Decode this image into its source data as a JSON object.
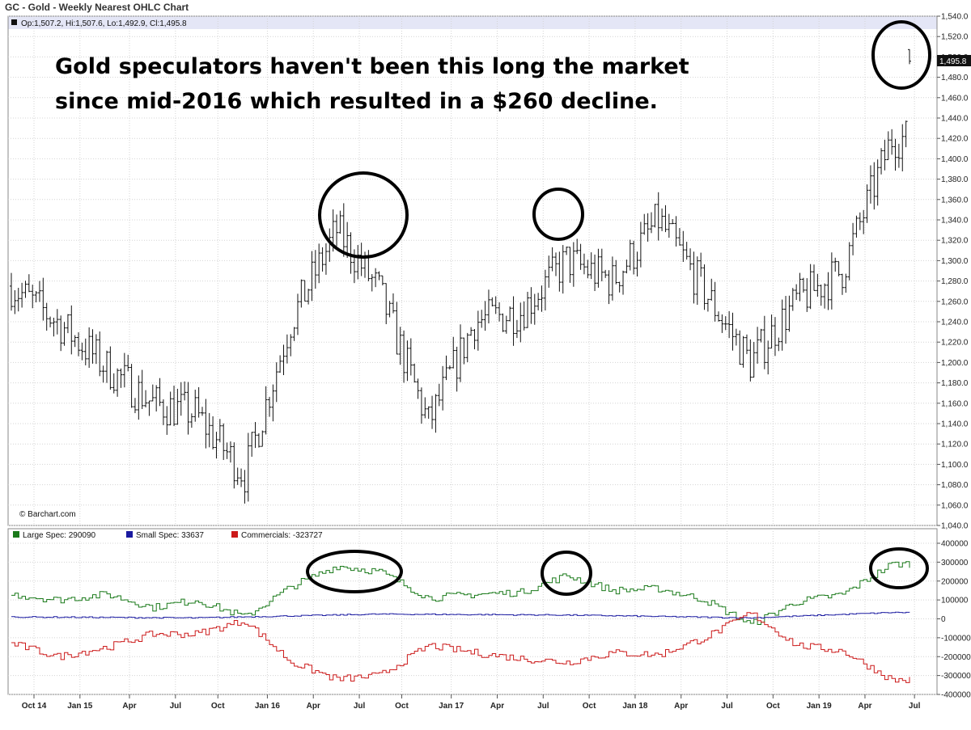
{
  "header": {
    "title": "GC - Gold - Weekly Nearest OHLC Chart"
  },
  "ohlc_info": "Op:1,507.2, Hi:1,507.6, Lo:1,492.9, Cl:1,495.8",
  "watermark": "© Barchart.com",
  "annotation": {
    "line1": "Gold speculators haven't been this long the market",
    "line2": "since mid-2016 which resulted in a $260 decline."
  },
  "last_price_label": "1,495.8",
  "colors": {
    "large_spec": "#1a7a1a",
    "small_spec": "#1a1aa0",
    "commercials": "#cc1a1a",
    "ohlc": "#111111",
    "info_band": "#e4e6f6"
  },
  "chart_data": [
    {
      "type": "ohlc",
      "title": "GC - Gold - Weekly Nearest OHLC Chart",
      "ylim": [
        1040,
        1540
      ],
      "yticks": [
        "1,040.0",
        "1,060.0",
        "1,080.0",
        "1,100.0",
        "1,120.0",
        "1,140.0",
        "1,160.0",
        "1,180.0",
        "1,200.0",
        "1,220.0",
        "1,240.0",
        "1,260.0",
        "1,280.0",
        "1,300.0",
        "1,320.0",
        "1,340.0",
        "1,360.0",
        "1,380.0",
        "1,400.0",
        "1,420.0",
        "1,440.0",
        "1,460.0",
        "1,480.0",
        "1,500.0",
        "1,520.0",
        "1,540.0"
      ],
      "x_labels": [
        "Oct 14",
        "Jan 15",
        "Apr",
        "Jul",
        "Oct",
        "Jan 16",
        "Apr",
        "Jul",
        "Oct",
        "Jan 17",
        "Apr",
        "Jul",
        "Oct",
        "Jan 18",
        "Apr",
        "Jul",
        "Oct",
        "Jan 19",
        "Apr",
        "Jul"
      ],
      "anchor_week_index": [
        0,
        13,
        27,
        40,
        52,
        66,
        79,
        92,
        104,
        118,
        131,
        144,
        157,
        170,
        183,
        196,
        209,
        222,
        235,
        249
      ],
      "anchor_close": [
        1275,
        1240,
        1195,
        1160,
        1150,
        1090,
        1240,
        1330,
        1270,
        1140,
        1240,
        1250,
        1300,
        1280,
        1340,
        1270,
        1200,
        1260,
        1290,
        1420
      ],
      "last_bar": {
        "open": 1507.2,
        "high": 1507.6,
        "low": 1492.9,
        "close": 1495.8
      },
      "weeks": 255,
      "grid": true
    },
    {
      "type": "line",
      "title": "COT positions",
      "ylim": [
        -400000,
        400000
      ],
      "yticks": [
        "400000",
        "300000",
        "200000",
        "100000",
        "0",
        "-100000",
        "-200000",
        "-300000",
        "-400000"
      ],
      "series": [
        {
          "name": "Large Spec: 290090",
          "color": "#1a7a1a",
          "anchor_week_index": [
            0,
            13,
            27,
            40,
            52,
            66,
            79,
            92,
            104,
            118,
            131,
            144,
            157,
            170,
            183,
            196,
            209,
            222,
            235,
            249
          ],
          "anchor_values": [
            130000,
            100000,
            130000,
            60000,
            100000,
            10000,
            170000,
            280000,
            250000,
            110000,
            130000,
            140000,
            230000,
            150000,
            160000,
            100000,
            -30000,
            90000,
            130000,
            290090
          ]
        },
        {
          "name": "Small Spec: 33637",
          "color": "#1a1aa0",
          "anchor_week_index": [
            0,
            52,
            104,
            157,
            209,
            249
          ],
          "anchor_values": [
            10000,
            5000,
            25000,
            20000,
            5000,
            33637
          ]
        },
        {
          "name": "Commercials: -323727",
          "color": "#cc1a1a",
          "anchor_week_index": [
            0,
            13,
            27,
            40,
            52,
            66,
            79,
            92,
            104,
            118,
            131,
            144,
            157,
            170,
            183,
            196,
            209,
            222,
            235,
            249
          ],
          "anchor_values": [
            -130000,
            -200000,
            -150000,
            -80000,
            -80000,
            -10000,
            -230000,
            -320000,
            -300000,
            -140000,
            -180000,
            -210000,
            -230000,
            -180000,
            -190000,
            -100000,
            30000,
            -140000,
            -170000,
            -323727
          ]
        }
      ],
      "grid": true
    }
  ]
}
